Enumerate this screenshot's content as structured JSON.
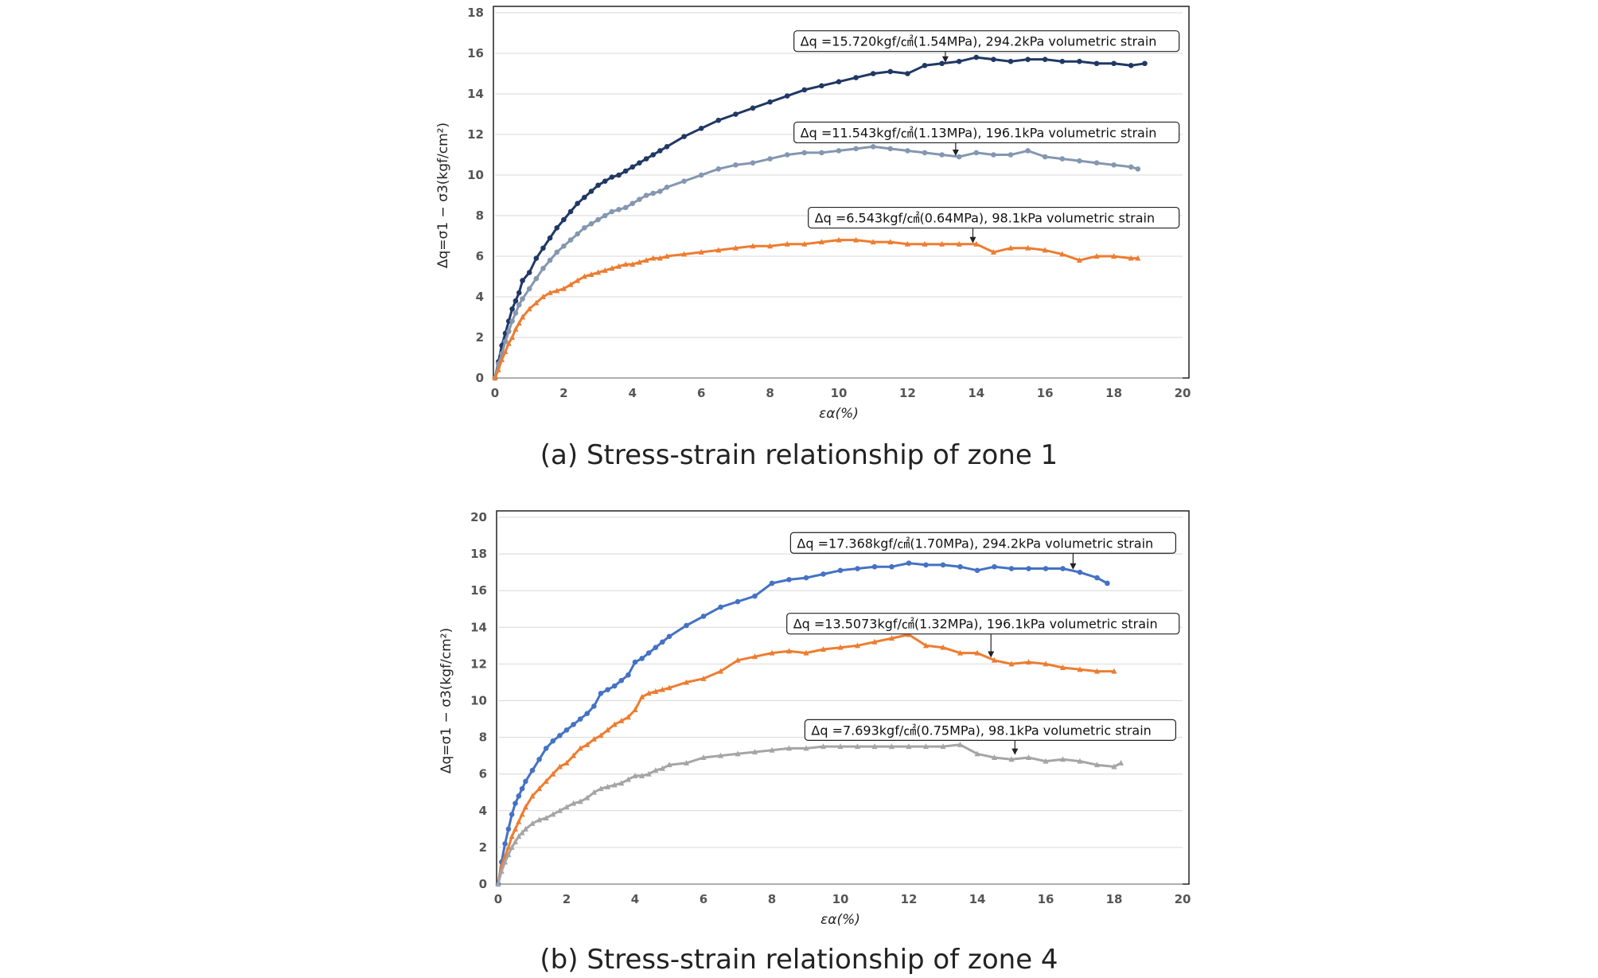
{
  "chart_data": [
    {
      "type": "line",
      "caption": "(a) Stress-strain relationship of zone 1",
      "xlabel": "εα(%)",
      "ylabel": "Δq=σ1 − σ3(kgf/cm²)",
      "xlim": [
        0,
        20
      ],
      "ylim": [
        0,
        18
      ],
      "xticks": [
        "0",
        "2",
        "4",
        "6",
        "8",
        "10",
        "12",
        "14",
        "16",
        "18",
        "20"
      ],
      "yticks": [
        "0",
        "2",
        "4",
        "6",
        "8",
        "10",
        "12",
        "14",
        "16",
        "18"
      ],
      "grid": "horizontal",
      "series": [
        {
          "color": "#203864",
          "marker": "circle",
          "x": [
            0,
            0.1,
            0.2,
            0.3,
            0.4,
            0.5,
            0.6,
            0.7,
            0.8,
            1.0,
            1.2,
            1.4,
            1.6,
            1.8,
            2.0,
            2.2,
            2.4,
            2.6,
            2.8,
            3.0,
            3.2,
            3.4,
            3.6,
            3.8,
            4.0,
            4.2,
            4.4,
            4.6,
            4.8,
            5.0,
            5.5,
            6.0,
            6.5,
            7.0,
            7.5,
            8.0,
            8.5,
            9.0,
            9.5,
            10.0,
            10.5,
            11.0,
            11.5,
            12.0,
            12.5,
            13.0,
            13.5,
            14.0,
            14.5,
            15.0,
            15.5,
            16.0,
            16.5,
            17.0,
            17.5,
            18.0,
            18.5,
            18.9
          ],
          "y": [
            0,
            0.8,
            1.6,
            2.2,
            2.8,
            3.4,
            3.8,
            4.2,
            4.8,
            5.2,
            5.9,
            6.4,
            6.9,
            7.4,
            7.8,
            8.2,
            8.6,
            8.9,
            9.2,
            9.5,
            9.7,
            9.9,
            10.0,
            10.2,
            10.4,
            10.6,
            10.8,
            11.0,
            11.2,
            11.4,
            11.9,
            12.3,
            12.7,
            13.0,
            13.3,
            13.6,
            13.9,
            14.2,
            14.4,
            14.6,
            14.8,
            15.0,
            15.1,
            15.0,
            15.4,
            15.5,
            15.6,
            15.8,
            15.7,
            15.6,
            15.7,
            15.7,
            15.6,
            15.6,
            15.5,
            15.5,
            15.4,
            15.5
          ]
        },
        {
          "color": "#8497b0",
          "marker": "circle",
          "x": [
            0,
            0.1,
            0.2,
            0.3,
            0.4,
            0.5,
            0.6,
            0.7,
            0.8,
            1.0,
            1.2,
            1.4,
            1.6,
            1.8,
            2.0,
            2.2,
            2.4,
            2.6,
            2.8,
            3.0,
            3.2,
            3.4,
            3.6,
            3.8,
            4.0,
            4.2,
            4.4,
            4.6,
            4.8,
            5.0,
            5.5,
            6.0,
            6.5,
            7.0,
            7.5,
            8.0,
            8.5,
            9.0,
            9.5,
            10.0,
            10.5,
            11.0,
            11.5,
            12.0,
            12.5,
            13.0,
            13.5,
            14.0,
            14.5,
            15.0,
            15.5,
            16.0,
            16.5,
            17.0,
            17.5,
            18.0,
            18.5,
            18.7
          ],
          "y": [
            0,
            0.7,
            1.2,
            1.8,
            2.3,
            2.8,
            3.2,
            3.6,
            3.9,
            4.4,
            4.9,
            5.4,
            5.8,
            6.2,
            6.5,
            6.8,
            7.1,
            7.4,
            7.6,
            7.8,
            8.0,
            8.2,
            8.3,
            8.4,
            8.6,
            8.8,
            9.0,
            9.1,
            9.2,
            9.4,
            9.7,
            10.0,
            10.3,
            10.5,
            10.6,
            10.8,
            11.0,
            11.1,
            11.1,
            11.2,
            11.3,
            11.4,
            11.3,
            11.2,
            11.1,
            11.0,
            10.9,
            11.1,
            11.0,
            11.0,
            11.2,
            10.9,
            10.8,
            10.7,
            10.6,
            10.5,
            10.4,
            10.3
          ]
        },
        {
          "color": "#ed7d31",
          "marker": "triangle",
          "x": [
            0,
            0.1,
            0.2,
            0.3,
            0.4,
            0.5,
            0.6,
            0.7,
            0.8,
            1.0,
            1.2,
            1.4,
            1.6,
            1.8,
            2.0,
            2.2,
            2.4,
            2.6,
            2.8,
            3.0,
            3.2,
            3.4,
            3.6,
            3.8,
            4.0,
            4.2,
            4.4,
            4.6,
            4.8,
            5.0,
            5.5,
            6.0,
            6.5,
            7.0,
            7.5,
            8.0,
            8.5,
            9.0,
            9.5,
            10.0,
            10.5,
            11.0,
            11.5,
            12.0,
            12.5,
            13.0,
            13.5,
            14.0,
            14.5,
            15.0,
            15.5,
            16.0,
            16.5,
            17.0,
            17.5,
            18.0,
            18.5,
            18.7
          ],
          "y": [
            0,
            0.4,
            0.9,
            1.3,
            1.7,
            2.0,
            2.4,
            2.7,
            3.0,
            3.4,
            3.7,
            4.0,
            4.2,
            4.3,
            4.4,
            4.6,
            4.8,
            5.0,
            5.1,
            5.2,
            5.3,
            5.4,
            5.5,
            5.6,
            5.6,
            5.7,
            5.8,
            5.9,
            5.9,
            6.0,
            6.1,
            6.2,
            6.3,
            6.4,
            6.5,
            6.5,
            6.6,
            6.6,
            6.7,
            6.8,
            6.8,
            6.7,
            6.7,
            6.6,
            6.6,
            6.6,
            6.6,
            6.6,
            6.2,
            6.4,
            6.4,
            6.3,
            6.1,
            5.8,
            6.0,
            6.0,
            5.9,
            5.9
          ]
        }
      ],
      "annotations": [
        {
          "text": "Δq =15.720kgf/㎠(1.54MPa), 294.2kPa volumetric strain",
          "target": [
            13.1,
            15.5
          ],
          "box_right": 19.9,
          "box_y": 16.6
        },
        {
          "text": "Δq =11.543kgf/㎠(1.13MPa), 196.1kPa volumetric strain",
          "target": [
            13.4,
            10.9
          ],
          "box_right": 19.9,
          "box_y": 12.1
        },
        {
          "text": "Δq =6.543kgf/㎠(0.64MPa), 98.1kPa volumetric strain",
          "target": [
            13.9,
            6.6
          ],
          "box_right": 19.9,
          "box_y": 7.9
        }
      ]
    },
    {
      "type": "line",
      "caption": "(b) Stress-strain relationship of zone 4",
      "xlabel": "εα(%)",
      "ylabel": "Δq=σ1 − σ3(kgf/cm²)",
      "xlim": [
        0,
        20
      ],
      "ylim": [
        0,
        20
      ],
      "xticks": [
        "0",
        "2",
        "4",
        "6",
        "8",
        "10",
        "12",
        "14",
        "16",
        "18",
        "20"
      ],
      "yticks": [
        "0",
        "2",
        "4",
        "6",
        "8",
        "10",
        "12",
        "14",
        "16",
        "18",
        "20"
      ],
      "grid": "horizontal",
      "series": [
        {
          "color": "#4472c4",
          "marker": "circle",
          "x": [
            0,
            0.1,
            0.2,
            0.3,
            0.4,
            0.5,
            0.6,
            0.7,
            0.8,
            1.0,
            1.2,
            1.4,
            1.6,
            1.8,
            2.0,
            2.2,
            2.4,
            2.6,
            2.8,
            3.0,
            3.2,
            3.4,
            3.6,
            3.8,
            4.0,
            4.2,
            4.4,
            4.6,
            4.8,
            5.0,
            5.5,
            6.0,
            6.5,
            7.0,
            7.5,
            8.0,
            8.5,
            9.0,
            9.5,
            10.0,
            10.5,
            11.0,
            11.5,
            12.0,
            12.5,
            13.0,
            13.5,
            14.0,
            14.5,
            15.0,
            15.5,
            16.0,
            16.5,
            17.0,
            17.5,
            17.8
          ],
          "y": [
            0,
            1.2,
            2.2,
            3.0,
            3.8,
            4.4,
            4.8,
            5.2,
            5.6,
            6.2,
            6.8,
            7.4,
            7.8,
            8.1,
            8.4,
            8.7,
            9.0,
            9.3,
            9.7,
            10.4,
            10.6,
            10.8,
            11.1,
            11.4,
            12.1,
            12.3,
            12.6,
            12.9,
            13.2,
            13.5,
            14.1,
            14.6,
            15.1,
            15.4,
            15.7,
            16.4,
            16.6,
            16.7,
            16.9,
            17.1,
            17.2,
            17.3,
            17.3,
            17.5,
            17.4,
            17.4,
            17.3,
            17.1,
            17.3,
            17.2,
            17.2,
            17.2,
            17.2,
            17.0,
            16.7,
            16.4
          ]
        },
        {
          "color": "#ed7d31",
          "marker": "triangle",
          "x": [
            0,
            0.1,
            0.2,
            0.3,
            0.4,
            0.5,
            0.6,
            0.7,
            0.8,
            1.0,
            1.2,
            1.4,
            1.6,
            1.8,
            2.0,
            2.2,
            2.4,
            2.6,
            2.8,
            3.0,
            3.2,
            3.4,
            3.6,
            3.8,
            4.0,
            4.2,
            4.4,
            4.6,
            4.8,
            5.0,
            5.5,
            6.0,
            6.5,
            7.0,
            7.5,
            8.0,
            8.5,
            9.0,
            9.5,
            10.0,
            10.5,
            11.0,
            11.5,
            12.0,
            12.5,
            13.0,
            13.5,
            14.0,
            14.5,
            15.0,
            15.5,
            16.0,
            16.5,
            17.0,
            17.5,
            18.0
          ],
          "y": [
            0,
            1.0,
            1.5,
            2.0,
            2.6,
            3.0,
            3.4,
            3.8,
            4.2,
            4.8,
            5.2,
            5.6,
            6.0,
            6.4,
            6.6,
            7.0,
            7.4,
            7.6,
            7.9,
            8.1,
            8.4,
            8.7,
            8.9,
            9.1,
            9.5,
            10.2,
            10.4,
            10.5,
            10.6,
            10.7,
            11.0,
            11.2,
            11.6,
            12.2,
            12.4,
            12.6,
            12.7,
            12.6,
            12.8,
            12.9,
            13.0,
            13.2,
            13.4,
            13.6,
            13.0,
            12.9,
            12.6,
            12.6,
            12.2,
            12.0,
            12.1,
            12.0,
            11.8,
            11.7,
            11.6,
            11.6
          ]
        },
        {
          "color": "#a5a5a5",
          "marker": "triangle",
          "x": [
            0,
            0.1,
            0.2,
            0.3,
            0.4,
            0.5,
            0.6,
            0.7,
            0.8,
            1.0,
            1.2,
            1.4,
            1.6,
            1.8,
            2.0,
            2.2,
            2.4,
            2.6,
            2.8,
            3.0,
            3.2,
            3.4,
            3.6,
            3.8,
            4.0,
            4.2,
            4.4,
            4.6,
            4.8,
            5.0,
            5.5,
            6.0,
            6.5,
            7.0,
            7.5,
            8.0,
            8.5,
            9.0,
            9.5,
            10.0,
            10.5,
            11.0,
            11.5,
            12.0,
            12.5,
            13.0,
            13.5,
            14.0,
            14.5,
            15.0,
            15.5,
            16.0,
            16.5,
            17.0,
            17.5,
            18.0,
            18.2
          ],
          "y": [
            0,
            0.7,
            1.2,
            1.6,
            2.0,
            2.3,
            2.6,
            2.8,
            3.0,
            3.3,
            3.5,
            3.6,
            3.8,
            4.0,
            4.2,
            4.4,
            4.5,
            4.7,
            5.0,
            5.2,
            5.3,
            5.4,
            5.5,
            5.7,
            5.9,
            5.9,
            6.0,
            6.2,
            6.3,
            6.5,
            6.6,
            6.9,
            7.0,
            7.1,
            7.2,
            7.3,
            7.4,
            7.4,
            7.5,
            7.5,
            7.5,
            7.5,
            7.5,
            7.5,
            7.5,
            7.5,
            7.6,
            7.1,
            6.9,
            6.8,
            6.9,
            6.7,
            6.8,
            6.7,
            6.5,
            6.4,
            6.6
          ]
        }
      ],
      "annotations": [
        {
          "text": "Δq =17.368kgf/㎠(1.70MPa), 294.2kPa volumetric strain",
          "target": [
            16.8,
            17.1
          ],
          "box_right": 19.8,
          "box_y": 18.6
        },
        {
          "text": "Δq =13.5073kgf/㎠(1.32MPa), 196.1kPa volumetric strain",
          "target": [
            14.4,
            12.3
          ],
          "box_right": 19.9,
          "box_y": 14.2
        },
        {
          "text": "Δq =7.693kgf/㎠(0.75MPa), 98.1kPa volumetric strain",
          "target": [
            15.1,
            7.0
          ],
          "box_right": 19.8,
          "box_y": 8.4
        }
      ]
    }
  ]
}
